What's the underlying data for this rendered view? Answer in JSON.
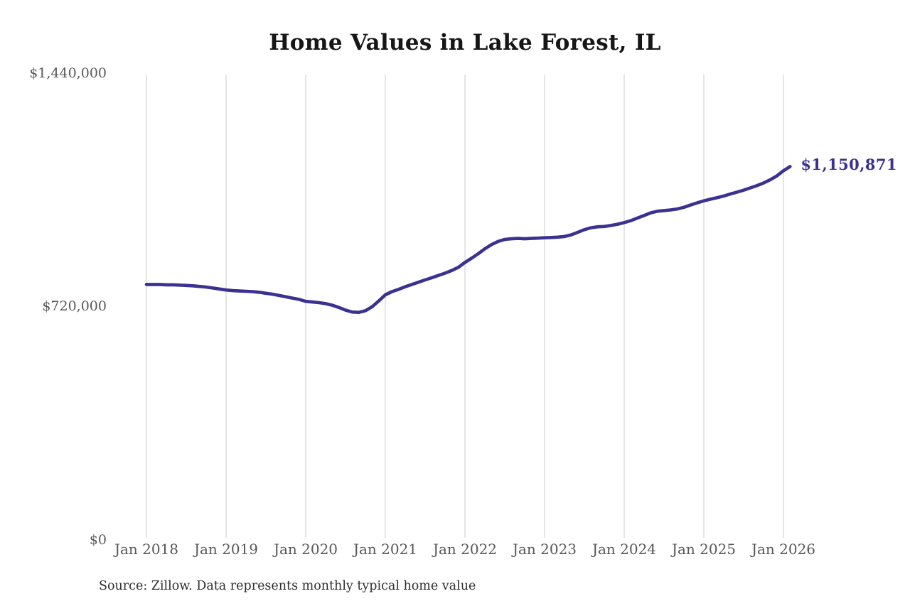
{
  "chart_data": {
    "type": "line",
    "title": "Home Values in Lake Forest, IL",
    "source_note": "Source: Zillow. Data represents monthly typical home value",
    "series_name": "Monthly typical home value",
    "unit": "USD",
    "x_start": "Jan 2018",
    "x_end": "Feb 2026",
    "x_tick_labels": [
      "Jan 2018",
      "Jan 2019",
      "Jan 2020",
      "Jan 2021",
      "Jan 2022",
      "Jan 2023",
      "Jan 2024",
      "Jan 2025",
      "Jan 2026"
    ],
    "y_tick_labels": [
      "$0",
      "$720,000",
      "$1,440,000"
    ],
    "y_tick_values": [
      0,
      720000,
      1440000
    ],
    "ylim": [
      0,
      1440000
    ],
    "grid": "vertical-only",
    "legend": "none",
    "end_label": "$1,150,871",
    "end_value": 1150871,
    "line_color": "#3a3191",
    "grid_color": "#cbcbcb",
    "values_monthly": [
      787000,
      787000,
      787000,
      786000,
      786000,
      785000,
      784000,
      783000,
      781000,
      779000,
      776000,
      773000,
      770000,
      768000,
      767000,
      766000,
      765000,
      763000,
      760000,
      757000,
      753000,
      749000,
      745000,
      741000,
      735000,
      733000,
      731000,
      728000,
      723000,
      716000,
      708000,
      702000,
      701000,
      706000,
      718000,
      736000,
      755000,
      765000,
      772000,
      780000,
      787000,
      794000,
      801000,
      808000,
      815000,
      822000,
      830000,
      840000,
      855000,
      868000,
      882000,
      897000,
      910000,
      920000,
      926000,
      928000,
      929000,
      928000,
      929000,
      930000,
      931000,
      932000,
      933000,
      935000,
      940000,
      948000,
      956000,
      962000,
      965000,
      966000,
      969000,
      973000,
      978000,
      984000,
      992000,
      1000000,
      1008000,
      1013000,
      1015000,
      1017000,
      1020000,
      1025000,
      1032000,
      1039000,
      1045000,
      1050000,
      1055000,
      1060000,
      1066000,
      1072000,
      1078000,
      1085000,
      1092000,
      1100000,
      1110000,
      1122000,
      1138000,
      1150871
    ]
  }
}
